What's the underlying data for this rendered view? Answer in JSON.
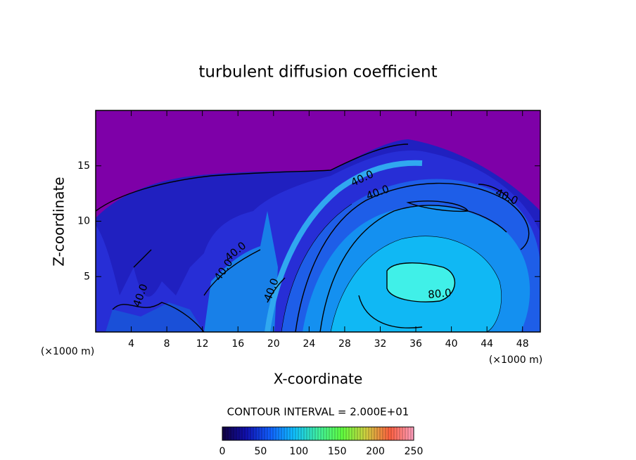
{
  "chart_data": {
    "type": "contour",
    "title": "turbulent diffusion coefficient",
    "x_label": "X-coordinate",
    "y_label": "Z-coordinate",
    "x_unit_left": "(×1000 m)",
    "x_unit_right": "(×1000 m)",
    "xlim": [
      0,
      50
    ],
    "xticks": [
      4,
      8,
      12,
      16,
      20,
      24,
      28,
      32,
      36,
      40,
      44,
      48
    ],
    "ylim": [
      0,
      20
    ],
    "yticks": [
      5,
      10,
      15
    ],
    "contour_interval_text": "CONTOUR INTERVAL = 2.000E+01",
    "contour_labels": [
      "40.0",
      "40.0",
      "40.0",
      "40.0",
      "40.0",
      "40.0",
      "40.0",
      "80.0"
    ],
    "colorbar": {
      "lim": [
        0,
        250
      ],
      "ticks": [
        0,
        50,
        100,
        150,
        200,
        250
      ],
      "colors": [
        "#100040",
        "#1010b0",
        "#1060ff",
        "#10c0ff",
        "#40f0a0",
        "#60ff40",
        "#d0d040",
        "#ff6040",
        "#ffa0c0"
      ]
    }
  }
}
